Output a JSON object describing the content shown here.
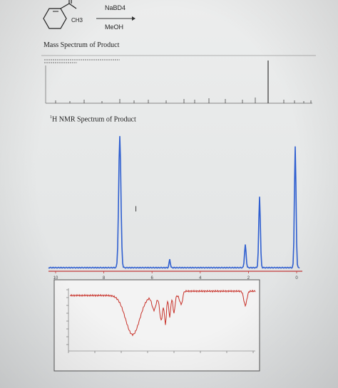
{
  "reaction": {
    "reagent": "NaBD4",
    "solvent": "MeOH",
    "methyl_label": "CH3"
  },
  "mass_spectrum": {
    "title": "Mass Spectrum of Product"
  },
  "nmr_spectrum": {
    "title": "1H NMR Spectrum of Product",
    "superscript": "1",
    "title_rest": "H NMR Spectrum of Product",
    "axis_ticks": [
      "10",
      "8",
      "6",
      "4",
      "2",
      "0"
    ]
  },
  "colors": {
    "nmr_trace": "#2f5fd0",
    "ir_trace": "#c8322a",
    "nmr_axis": "#c23a3a"
  },
  "cursor": "text-cursor-icon"
}
